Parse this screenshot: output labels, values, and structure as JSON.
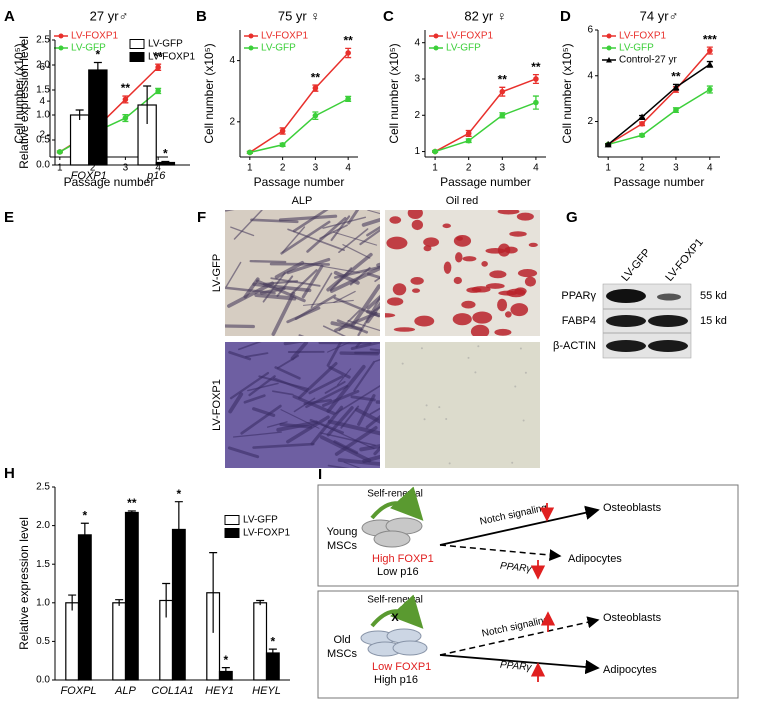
{
  "chart_data": [
    {
      "type": "line",
      "panel_label": "A",
      "title": "27 yr♂",
      "xlabel": "Passage number",
      "ylabel": "Cell number (x10⁵)",
      "x": [
        1,
        2,
        3,
        4
      ],
      "xlim": [
        0.7,
        4.3
      ],
      "xticks": [
        1,
        2,
        3,
        4
      ],
      "ylim": [
        0.7,
        8.2
      ],
      "yticks": [
        2,
        4,
        6
      ],
      "legend": "upper left",
      "series": [
        {
          "name": "LV-FOXP1",
          "color": "#e8302c",
          "marker": "circle",
          "values": [
            1,
            2.2,
            4.1,
            6.0
          ],
          "errors": [
            0.05,
            0.1,
            0.2,
            0.18
          ]
        },
        {
          "name": "LV-GFP",
          "color": "#3ccf3a",
          "marker": "circle",
          "values": [
            1,
            2.1,
            3.0,
            4.6
          ],
          "errors": [
            0.05,
            0.1,
            0.2,
            0.15
          ]
        }
      ],
      "annotations": [
        null,
        null,
        "**",
        "**"
      ]
    },
    {
      "type": "line",
      "panel_label": "B",
      "title": "75 yr ♀",
      "xlabel": "Passage number",
      "ylabel": "Cell number (x10⁵)",
      "x": [
        1,
        2,
        3,
        4
      ],
      "xlim": [
        0.7,
        4.3
      ],
      "xticks": [
        1,
        2,
        3,
        4
      ],
      "ylim": [
        0.85,
        5.0
      ],
      "yticks": [
        2,
        4
      ],
      "legend": "upper left",
      "series": [
        {
          "name": "LV-FOXP1",
          "color": "#e8302c",
          "marker": "circle",
          "values": [
            1,
            1.7,
            3.1,
            4.25
          ],
          "errors": [
            0.03,
            0.1,
            0.1,
            0.15
          ]
        },
        {
          "name": "LV-GFP",
          "color": "#3ccf3a",
          "marker": "circle",
          "values": [
            1,
            1.25,
            2.2,
            2.75
          ],
          "errors": [
            0.03,
            0.05,
            0.12,
            0.08
          ]
        }
      ],
      "annotations": [
        null,
        null,
        "**",
        "**"
      ]
    },
    {
      "type": "line",
      "panel_label": "C",
      "title": "82 yr ♀",
      "xlabel": "Passage number",
      "ylabel": "Cell number (x10⁵)",
      "x": [
        1,
        2,
        3,
        4
      ],
      "xlim": [
        0.7,
        4.3
      ],
      "xticks": [
        1,
        2,
        3,
        4
      ],
      "ylim": [
        0.85,
        4.35
      ],
      "yticks": [
        1,
        2,
        3,
        4
      ],
      "legend": "upper left",
      "series": [
        {
          "name": "LV-FOXP1",
          "color": "#e8302c",
          "marker": "circle",
          "values": [
            1,
            1.5,
            2.65,
            3.0
          ],
          "errors": [
            0.02,
            0.08,
            0.12,
            0.12
          ]
        },
        {
          "name": "LV-GFP",
          "color": "#3ccf3a",
          "marker": "circle",
          "values": [
            1,
            1.3,
            2.0,
            2.35
          ],
          "errors": [
            0.02,
            0.05,
            0.07,
            0.18
          ]
        }
      ],
      "annotations": [
        null,
        null,
        "**",
        "**"
      ]
    },
    {
      "type": "line",
      "panel_label": "D",
      "title": "74 yr♂",
      "xlabel": "Passage number",
      "ylabel": "Cell number (x10⁵)",
      "x": [
        1,
        2,
        3,
        4
      ],
      "xlim": [
        0.7,
        4.3
      ],
      "xticks": [
        1,
        2,
        3,
        4
      ],
      "ylim": [
        0.45,
        6
      ],
      "yticks": [
        2,
        4,
        6
      ],
      "legend": "upper left",
      "series": [
        {
          "name": "LV-FOXP1",
          "color": "#e8302c",
          "marker": "circle",
          "values": [
            1,
            1.9,
            3.4,
            5.1
          ],
          "errors": [
            0.03,
            0.08,
            0.12,
            0.15
          ]
        },
        {
          "name": "LV-GFP",
          "color": "#3ccf3a",
          "marker": "circle",
          "values": [
            1,
            1.4,
            2.5,
            3.4
          ],
          "errors": [
            0.03,
            0.06,
            0.1,
            0.15
          ]
        },
        {
          "name": "Control-27 yr",
          "color": "#000000",
          "marker": "triangle",
          "values": [
            1,
            2.2,
            3.5,
            4.5
          ],
          "errors": [
            0.03,
            0.06,
            0.12,
            0.12
          ]
        }
      ],
      "annotations": [
        null,
        null,
        "**",
        "***"
      ]
    },
    {
      "type": "bar",
      "panel_label": "E",
      "ylabel": "Relative expression level",
      "categories": [
        "FOXP1",
        "p16"
      ],
      "ylim": [
        0,
        2.5
      ],
      "yticks": [
        {
          "value": 0,
          "label": "0.0"
        },
        {
          "value": 0.5,
          "label": "0.5"
        },
        {
          "value": 1,
          "label": "1.0"
        },
        {
          "value": 1.5,
          "label": "1.5"
        },
        {
          "value": 2,
          "label": "2.0"
        },
        {
          "value": 2.5,
          "label": "2.5"
        }
      ],
      "legend": "right",
      "series": [
        {
          "name": "LV-GFP",
          "color": "#ffffff",
          "values": [
            1.0,
            1.2
          ],
          "errors": [
            0.1,
            0.38
          ]
        },
        {
          "name": "LV-FOXP1",
          "color": "#000000",
          "values": [
            1.9,
            0.05
          ],
          "errors": [
            0.15,
            0.02
          ]
        }
      ],
      "annotations": [
        "*",
        "*"
      ]
    },
    {
      "type": "bar",
      "panel_label": "H",
      "ylabel": "Relative expression level",
      "categories": [
        "FOXPL",
        "ALP",
        "COL1A1",
        "HEY1",
        "HEYL"
      ],
      "ylim": [
        0,
        2.5
      ],
      "yticks": [
        {
          "value": 0,
          "label": "0.0"
        },
        {
          "value": 0.5,
          "label": "0.5"
        },
        {
          "value": 1,
          "label": "1.0"
        },
        {
          "value": 1.5,
          "label": "1.5"
        },
        {
          "value": 2,
          "label": "2.0"
        },
        {
          "value": 2.5,
          "label": "2.5"
        }
      ],
      "legend": "right",
      "series": [
        {
          "name": "LV-GFP",
          "color": "#ffffff",
          "values": [
            1.0,
            1.0,
            1.03,
            1.13,
            1.0
          ],
          "errors": [
            0.1,
            0.04,
            0.22,
            0.52,
            0.03
          ]
        },
        {
          "name": "LV-FOXP1",
          "color": "#000000",
          "values": [
            1.88,
            2.17,
            1.95,
            0.11,
            0.35
          ],
          "errors": [
            0.15,
            0.02,
            0.36,
            0.05,
            0.05
          ]
        }
      ],
      "annotations": [
        "*",
        "**",
        "*",
        "*",
        "*"
      ]
    }
  ],
  "image_panel": {
    "panel_label": "F",
    "columns": [
      "ALP",
      "Oil red"
    ],
    "rows": [
      "LV-GFP",
      "LV-FOXP1"
    ]
  },
  "blot_panel": {
    "panel_label": "G",
    "lanes": [
      "LV-GFP",
      "LV-FOXP1"
    ],
    "rows": [
      "PPARγ",
      "FABP4",
      "β-ACTIN"
    ],
    "markers": [
      "55 kd",
      "15 kd",
      null
    ]
  },
  "diagram": {
    "panel_label": "I",
    "boxes": [
      {
        "group": [
          "Young",
          "MSCs"
        ],
        "self_renewal": "Self-renewal",
        "foxp1": "High FOXP1",
        "p16": "Low  p16",
        "notch": "Notch signaling",
        "target1": "Osteoblasts",
        "ppar": "PPARγ",
        "target2": "Adipocytes"
      },
      {
        "group": [
          "Old",
          "MSCs"
        ],
        "self_renewal": "Self-renewal",
        "blocked": "X",
        "foxp1": "Low  FOXP1",
        "p16": "High  p16",
        "notch": "Notch signaling",
        "target1": "Osteoblasts",
        "ppar": "PPARγ",
        "target2": "Adipocytes"
      }
    ]
  }
}
